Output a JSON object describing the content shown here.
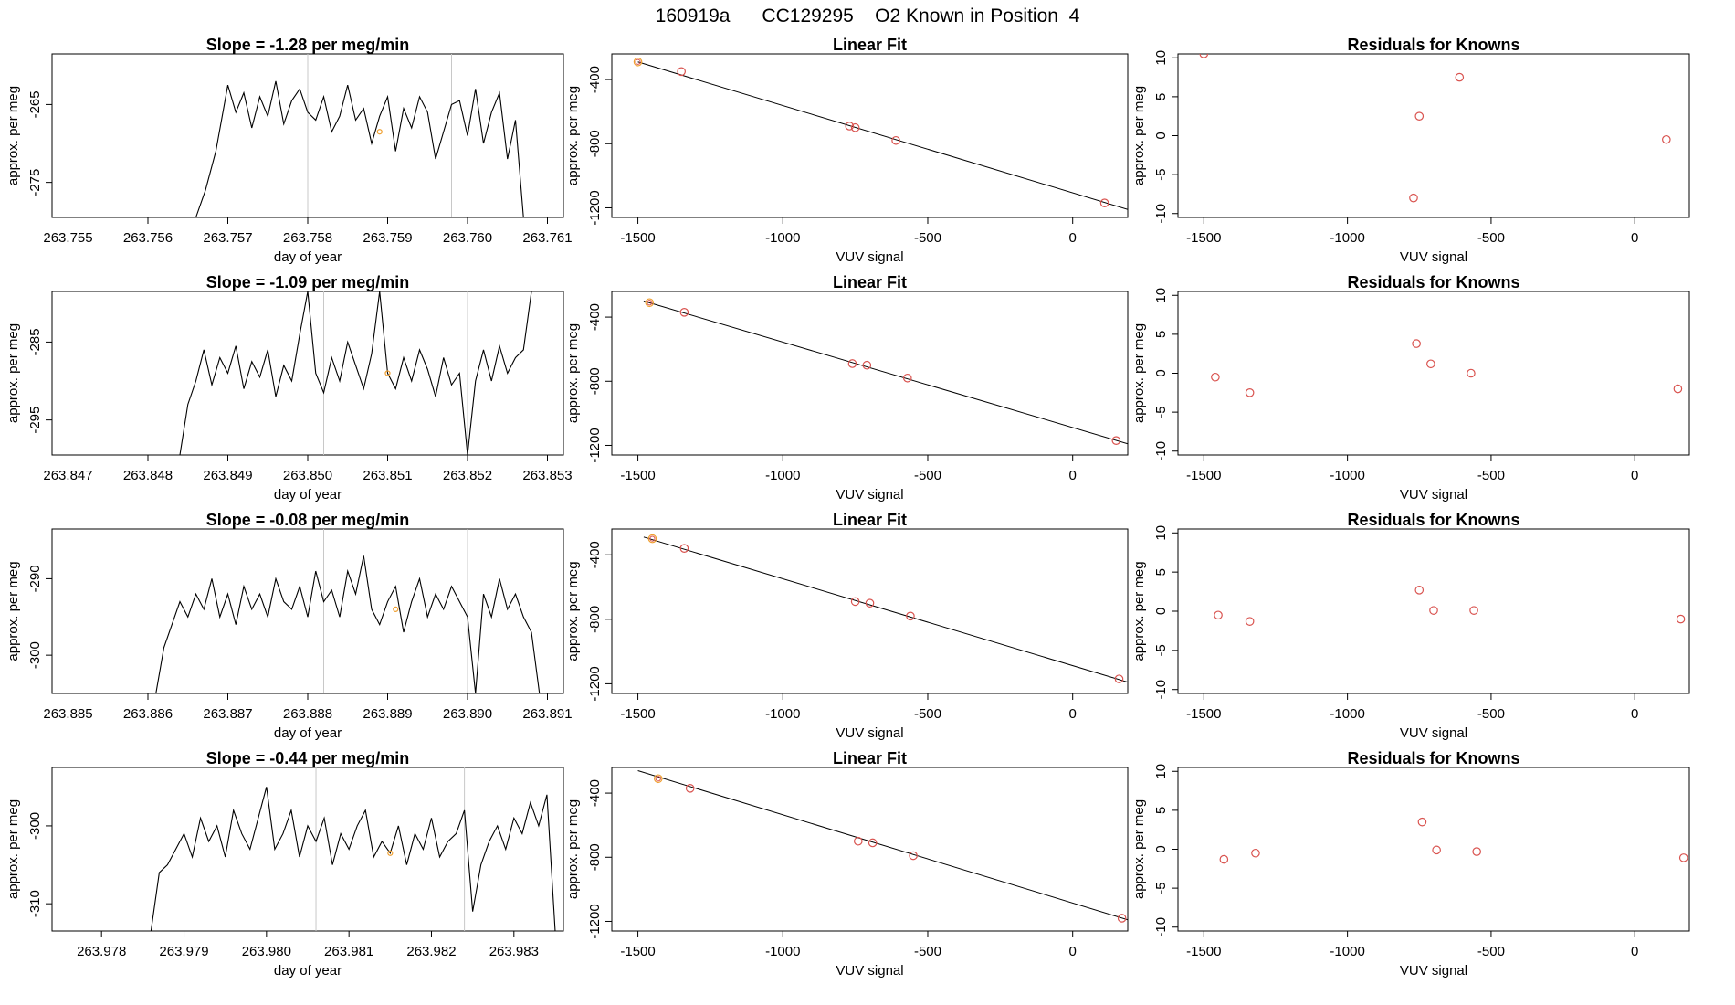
{
  "page": {
    "title": "160919a      CC129295    O2 Known in Position  4"
  },
  "colors": {
    "trace": "#000000",
    "axis": "#000000",
    "marker_line": "#c8c8c8",
    "point": "#d9534f",
    "highlight": "#f0a030"
  },
  "chart_data": [
    {
      "type": "line",
      "panel": "timeseries",
      "row": 1,
      "title": "Slope =  -1.28  per meg/min",
      "xlabel": "day of year",
      "ylabel": "approx. per meg",
      "xlim": [
        263.7548,
        263.7612
      ],
      "ylim": [
        -279.5,
        -258.5
      ],
      "xticks": [
        263.755,
        263.756,
        263.757,
        263.758,
        263.759,
        263.76,
        263.761
      ],
      "xtick_labels": [
        "263.755",
        "263.756",
        "263.757",
        "263.758",
        "263.759",
        "263.760",
        "263.761"
      ],
      "yticks": [
        -265,
        -275
      ],
      "ytick_labels": [
        "-265",
        "-275"
      ],
      "series_start": 263.7566,
      "series_end": 263.7607,
      "series_mean": -267.5,
      "series_amp": 3.2,
      "x": [
        263.7566,
        263.75672,
        263.75685,
        263.757,
        263.7571,
        263.7572,
        263.7573,
        263.7574,
        263.7575,
        263.7576,
        263.7577,
        263.7578,
        263.7579,
        263.758,
        263.7581,
        263.7582,
        263.7583,
        263.7584,
        263.7585,
        263.7586,
        263.7587,
        263.7588,
        263.7589,
        263.759,
        263.7591,
        263.7592,
        263.7593,
        263.7594,
        263.7595,
        263.7596,
        263.7597,
        263.7598,
        263.7599,
        263.76,
        263.7601,
        263.7602,
        263.7603,
        263.7604,
        263.7605,
        263.7606,
        263.7607
      ],
      "y": [
        -279.5,
        -276,
        -271,
        -262.5,
        -266,
        -263.5,
        -268,
        -264,
        -266.5,
        -262,
        -267.5,
        -264.5,
        -263,
        -266,
        -267,
        -264,
        -268.5,
        -266.5,
        -262.5,
        -267,
        -265.5,
        -270,
        -266.5,
        -264,
        -271,
        -265.5,
        -268,
        -264,
        -266,
        -272,
        -268.5,
        -265,
        -264.5,
        -269,
        -263,
        -270,
        -266,
        -263.5,
        -272,
        -267,
        -279.5
      ],
      "vlines": [
        263.758,
        263.7598
      ],
      "highlight_point": [
        263.7589,
        -268.5
      ]
    },
    {
      "type": "scatter",
      "panel": "linear-fit",
      "row": 1,
      "title": "Linear Fit",
      "xlabel": "VUV signal",
      "ylabel": "approx. per meg",
      "xlim": [
        -1590,
        190
      ],
      "ylim": [
        -1260,
        -240
      ],
      "xticks": [
        -1500,
        -1000,
        -500,
        0
      ],
      "xtick_labels": [
        "-1500",
        "-1000",
        "-500",
        "0"
      ],
      "yticks": [
        -400,
        -800,
        -1200
      ],
      "ytick_labels": [
        "-400",
        "-800",
        "-1200"
      ],
      "x": [
        -1500,
        -1350,
        -770,
        -750,
        -610,
        110
      ],
      "y": [
        -290,
        -350,
        -690,
        -700,
        -780,
        -1170
      ],
      "highlight_index": 0,
      "fit": {
        "x": [
          -1500,
          190
        ],
        "y": [
          -290,
          -1210
        ]
      }
    },
    {
      "type": "scatter",
      "panel": "residuals",
      "row": 1,
      "title": "Residuals for Knowns",
      "xlabel": "VUV signal",
      "ylabel": "approx. per meg",
      "xlim": [
        -1590,
        190
      ],
      "ylim": [
        -10.5,
        10.5
      ],
      "xticks": [
        -1500,
        -1000,
        -500,
        0
      ],
      "xtick_labels": [
        "-1500",
        "-1000",
        "-500",
        "0"
      ],
      "yticks": [
        10,
        5,
        0,
        -5,
        -10
      ],
      "ytick_labels": [
        "10",
        "5",
        "0",
        "-5",
        "-10"
      ],
      "x": [
        -1500,
        -770,
        -750,
        -610,
        110
      ],
      "y": [
        10.5,
        -8,
        2.5,
        7.5,
        -0.5
      ]
    },
    {
      "type": "line",
      "panel": "timeseries",
      "row": 2,
      "title": "Slope =  -1.09  per meg/min",
      "xlabel": "day of year",
      "ylabel": "approx. per meg",
      "xlim": [
        263.8468,
        263.8532
      ],
      "ylim": [
        -299.5,
        -278.5
      ],
      "xticks": [
        263.847,
        263.848,
        263.849,
        263.85,
        263.851,
        263.852,
        263.853
      ],
      "xtick_labels": [
        "263.847",
        "263.848",
        "263.849",
        "263.850",
        "263.851",
        "263.852",
        "263.853"
      ],
      "yticks": [
        -285,
        -295
      ],
      "ytick_labels": [
        "-285",
        "-295"
      ],
      "x": [
        263.8484,
        263.8485,
        263.8486,
        263.8487,
        263.8488,
        263.8489,
        263.849,
        263.8491,
        263.8492,
        263.8493,
        263.8494,
        263.8495,
        263.8496,
        263.8497,
        263.8498,
        263.8499,
        263.85,
        263.8501,
        263.8502,
        263.8503,
        263.8504,
        263.8505,
        263.8506,
        263.8507,
        263.8508,
        263.8509,
        263.851,
        263.8511,
        263.8512,
        263.8513,
        263.8514,
        263.8515,
        263.8516,
        263.8517,
        263.8518,
        263.8519,
        263.852,
        263.8521,
        263.8522,
        263.8523,
        263.8524,
        263.8525,
        263.8526,
        263.8527,
        263.8528
      ],
      "y": [
        -299.5,
        -293,
        -290,
        -286,
        -290.5,
        -287,
        -289,
        -285.5,
        -291,
        -287.5,
        -289.5,
        -286,
        -292,
        -288,
        -290,
        -284,
        -278.5,
        -289,
        -291.5,
        -287,
        -290,
        -285,
        -288,
        -291,
        -286.5,
        -278.5,
        -289,
        -291,
        -287,
        -290,
        -286,
        -288.5,
        -292,
        -287,
        -290.5,
        -289,
        -299.5,
        -290,
        -286,
        -290,
        -285.5,
        -289,
        -287,
        -286,
        -278.5
      ],
      "vlines": [
        263.8502,
        263.852
      ],
      "highlight_point": [
        263.851,
        -289
      ]
    },
    {
      "type": "scatter",
      "panel": "linear-fit",
      "row": 2,
      "title": "Linear Fit",
      "xlabel": "VUV signal",
      "ylabel": "approx. per meg",
      "xlim": [
        -1590,
        190
      ],
      "ylim": [
        -1260,
        -240
      ],
      "xticks": [
        -1500,
        -1000,
        -500,
        0
      ],
      "xtick_labels": [
        "-1500",
        "-1000",
        "-500",
        "0"
      ],
      "yticks": [
        -400,
        -800,
        -1200
      ],
      "ytick_labels": [
        "-400",
        "-800",
        "-1200"
      ],
      "x": [
        -1460,
        -1340,
        -760,
        -710,
        -570,
        150
      ],
      "y": [
        -310,
        -370,
        -690,
        -700,
        -780,
        -1170
      ],
      "highlight_index": 0,
      "fit": {
        "x": [
          -1480,
          190
        ],
        "y": [
          -300,
          -1190
        ]
      }
    },
    {
      "type": "scatter",
      "panel": "residuals",
      "row": 2,
      "title": "Residuals for Knowns",
      "xlabel": "VUV signal",
      "ylabel": "approx. per meg",
      "xlim": [
        -1590,
        190
      ],
      "ylim": [
        -10.5,
        10.5
      ],
      "xticks": [
        -1500,
        -1000,
        -500,
        0
      ],
      "xtick_labels": [
        "-1500",
        "-1000",
        "-500",
        "0"
      ],
      "yticks": [
        10,
        5,
        0,
        -5,
        -10
      ],
      "ytick_labels": [
        "10",
        "5",
        "0",
        "-5",
        "-10"
      ],
      "x": [
        -1460,
        -1340,
        -760,
        -710,
        -570,
        150
      ],
      "y": [
        -0.5,
        -2.5,
        3.8,
        1.2,
        0,
        -2
      ]
    },
    {
      "type": "line",
      "panel": "timeseries",
      "row": 3,
      "title": "Slope =  -0.08  per meg/min",
      "xlabel": "day of year",
      "ylabel": "approx. per meg",
      "xlim": [
        263.8848,
        263.8912
      ],
      "ylim": [
        -305,
        -283.5
      ],
      "xticks": [
        263.885,
        263.886,
        263.887,
        263.888,
        263.889,
        263.89,
        263.891
      ],
      "xtick_labels": [
        "263.885",
        "263.886",
        "263.887",
        "263.888",
        "263.889",
        "263.890",
        "263.891"
      ],
      "yticks": [
        -290,
        -300
      ],
      "ytick_labels": [
        "-290",
        "-300"
      ],
      "x": [
        263.8861,
        263.8862,
        263.8863,
        263.8864,
        263.8865,
        263.8866,
        263.8867,
        263.8868,
        263.8869,
        263.887,
        263.8871,
        263.8872,
        263.8873,
        263.8874,
        263.8875,
        263.8876,
        263.8877,
        263.8878,
        263.8879,
        263.888,
        263.8881,
        263.8882,
        263.8883,
        263.8884,
        263.8885,
        263.8886,
        263.8887,
        263.8888,
        263.8889,
        263.889,
        263.8891,
        263.8892,
        263.8893,
        263.8894,
        263.8895,
        263.8896,
        263.8897,
        263.8898,
        263.8899,
        263.89,
        263.8901,
        263.8902,
        263.8903,
        263.8904,
        263.8905,
        263.8906,
        263.8907,
        263.8908,
        263.8909
      ],
      "y": [
        -305,
        -299,
        -296,
        -293,
        -295,
        -292,
        -294,
        -290,
        -295,
        -292,
        -296,
        -291,
        -294,
        -292,
        -295,
        -290,
        -293,
        -294,
        -291,
        -295,
        -289,
        -293,
        -291.5,
        -295,
        -289,
        -292,
        -287,
        -294,
        -296,
        -293,
        -291,
        -297,
        -293,
        -290,
        -295,
        -292,
        -294,
        -291,
        -293,
        -295,
        -305,
        -292,
        -295,
        -290,
        -294,
        -292,
        -295,
        -297,
        -305
      ],
      "vlines": [
        263.8882,
        263.89
      ],
      "highlight_point": [
        263.8891,
        -294
      ]
    },
    {
      "type": "scatter",
      "panel": "linear-fit",
      "row": 3,
      "title": "Linear Fit",
      "xlabel": "VUV signal",
      "ylabel": "approx. per meg",
      "xlim": [
        -1590,
        190
      ],
      "ylim": [
        -1260,
        -240
      ],
      "xticks": [
        -1500,
        -1000,
        -500,
        0
      ],
      "xtick_labels": [
        "-1500",
        "-1000",
        "-500",
        "0"
      ],
      "yticks": [
        -400,
        -800,
        -1200
      ],
      "ytick_labels": [
        "-400",
        "-800",
        "-1200"
      ],
      "x": [
        -1450,
        -1340,
        -750,
        -700,
        -560,
        160
      ],
      "y": [
        -300,
        -360,
        -690,
        -700,
        -780,
        -1170
      ],
      "highlight_index": 0,
      "fit": {
        "x": [
          -1480,
          190
        ],
        "y": [
          -290,
          -1190
        ]
      }
    },
    {
      "type": "scatter",
      "panel": "residuals",
      "row": 3,
      "title": "Residuals for Knowns",
      "xlabel": "VUV signal",
      "ylabel": "approx. per meg",
      "xlim": [
        -1590,
        190
      ],
      "ylim": [
        -10.5,
        10.5
      ],
      "xticks": [
        -1500,
        -1000,
        -500,
        0
      ],
      "xtick_labels": [
        "-1500",
        "-1000",
        "-500",
        "0"
      ],
      "yticks": [
        10,
        5,
        0,
        -5,
        -10
      ],
      "ytick_labels": [
        "10",
        "5",
        "0",
        "-5",
        "-10"
      ],
      "x": [
        -1450,
        -1340,
        -750,
        -700,
        -560,
        160
      ],
      "y": [
        -0.5,
        -1.3,
        2.7,
        0.1,
        0.1,
        -1
      ]
    },
    {
      "type": "line",
      "panel": "timeseries",
      "row": 4,
      "title": "Slope =  -0.44  per meg/min",
      "xlabel": "day of year",
      "ylabel": "approx. per meg",
      "xlim": [
        263.9774,
        263.9836
      ],
      "ylim": [
        -313.5,
        -292.5
      ],
      "xticks": [
        263.978,
        263.979,
        263.98,
        263.981,
        263.982,
        263.983
      ],
      "xtick_labels": [
        "263.978",
        "263.979",
        "263.980",
        "263.981",
        "263.982",
        "263.983"
      ],
      "yticks": [
        -300,
        -310
      ],
      "ytick_labels": [
        "-300",
        "-310"
      ],
      "x": [
        263.9786,
        263.9787,
        263.9788,
        263.9789,
        263.979,
        263.9791,
        263.9792,
        263.9793,
        263.9794,
        263.9795,
        263.9796,
        263.9797,
        263.9798,
        263.9799,
        263.98,
        263.9801,
        263.9802,
        263.9803,
        263.9804,
        263.9805,
        263.9806,
        263.9807,
        263.9808,
        263.9809,
        263.981,
        263.9811,
        263.9812,
        263.9813,
        263.9814,
        263.9815,
        263.9816,
        263.9817,
        263.9818,
        263.9819,
        263.982,
        263.9821,
        263.9822,
        263.9823,
        263.9824,
        263.9825,
        263.9826,
        263.9827,
        263.9828,
        263.9829,
        263.983,
        263.9831,
        263.9832,
        263.9833,
        263.9834,
        263.9835
      ],
      "y": [
        -313.5,
        -306,
        -305,
        -303,
        -301,
        -304,
        -299,
        -302,
        -300,
        -304,
        -298,
        -301,
        -303,
        -299,
        -295,
        -303,
        -301,
        -298,
        -304,
        -300,
        -302,
        -299,
        -305,
        -301,
        -303,
        -300,
        -298,
        -304,
        -302,
        -303.5,
        -300,
        -305,
        -301,
        -303,
        -299,
        -304,
        -302,
        -301,
        -298,
        -311,
        -305,
        -302,
        -300,
        -303,
        -299,
        -301,
        -297,
        -300,
        -296,
        -313.5
      ],
      "vlines": [
        263.9806,
        263.9824
      ],
      "highlight_point": [
        263.9815,
        -303.5
      ]
    },
    {
      "type": "scatter",
      "panel": "linear-fit",
      "row": 4,
      "title": "Linear Fit",
      "xlabel": "VUV signal",
      "ylabel": "approx. per meg",
      "xlim": [
        -1590,
        190
      ],
      "ylim": [
        -1260,
        -240
      ],
      "xticks": [
        -1500,
        -1000,
        -500,
        0
      ],
      "xtick_labels": [
        "-1500",
        "-1000",
        "-500",
        "0"
      ],
      "yticks": [
        -400,
        -800,
        -1200
      ],
      "ytick_labels": [
        "-400",
        "-800",
        "-1200"
      ],
      "x": [
        -1430,
        -1320,
        -740,
        -690,
        -550,
        170
      ],
      "y": [
        -310,
        -370,
        -700,
        -710,
        -790,
        -1180
      ],
      "highlight_index": 0,
      "fit": {
        "x": [
          -1500,
          190
        ],
        "y": [
          -260,
          -1190
        ]
      }
    },
    {
      "type": "scatter",
      "panel": "residuals",
      "row": 4,
      "title": "Residuals for Knowns",
      "xlabel": "VUV signal",
      "ylabel": "approx. per meg",
      "xlim": [
        -1590,
        190
      ],
      "ylim": [
        -10.5,
        10.5
      ],
      "xticks": [
        -1500,
        -1000,
        -500,
        0
      ],
      "xtick_labels": [
        "-1500",
        "-1000",
        "-500",
        "0"
      ],
      "yticks": [
        10,
        5,
        0,
        -5,
        -10
      ],
      "ytick_labels": [
        "10",
        "5",
        "0",
        "-5",
        "-10"
      ],
      "x": [
        -1430,
        -1320,
        -740,
        -690,
        -550,
        170
      ],
      "y": [
        -1.3,
        -0.5,
        3.5,
        -0.1,
        -0.3,
        -1.1
      ]
    }
  ]
}
